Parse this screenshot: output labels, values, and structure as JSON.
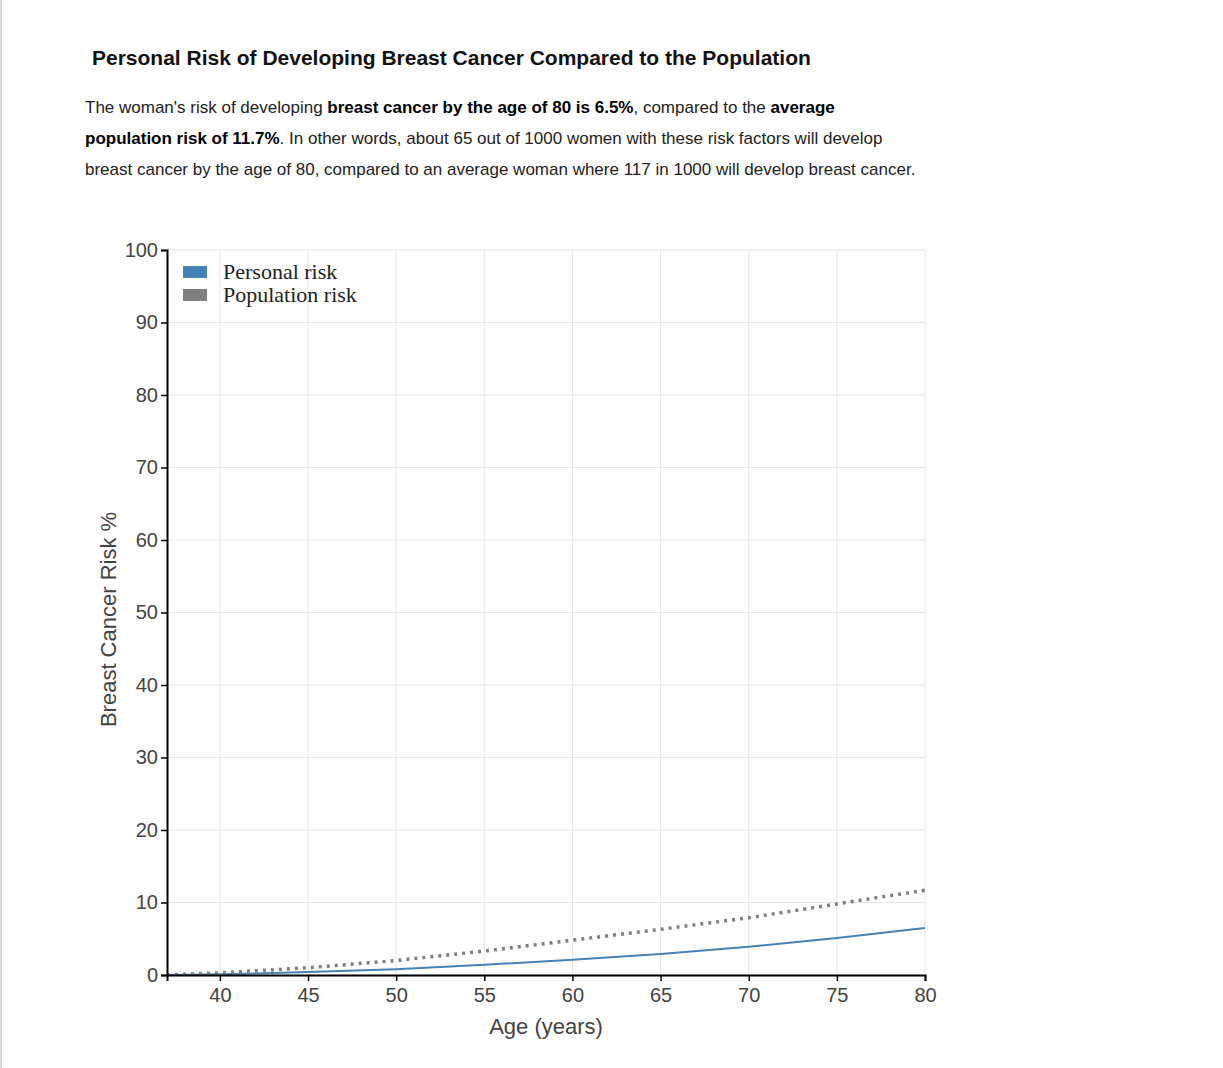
{
  "header": {
    "title": "Personal Risk of Developing Breast Cancer Compared to the Population",
    "lines": [
      [
        {
          "text": "The woman's risk of developing ",
          "bold": false
        },
        {
          "text": "breast cancer by the age of 80 is 6.5%",
          "bold": true
        },
        {
          "text": ", compared to the ",
          "bold": false
        },
        {
          "text": "average",
          "bold": true
        }
      ],
      [
        {
          "text": "population risk of 11.7%",
          "bold": true
        },
        {
          "text": ". In other words, about 65 out of 1000 women with these risk factors will develop",
          "bold": false
        }
      ],
      [
        {
          "text": "breast cancer by the age of 80, compared to an average woman where 117 in 1000 will develop breast cancer.",
          "bold": false
        }
      ]
    ]
  },
  "chart_data": {
    "type": "line",
    "x_label": "Age (years)",
    "y_label": "Breast Cancer Risk %",
    "x": [
      37,
      40,
      45,
      50,
      55,
      60,
      65,
      70,
      75,
      80
    ],
    "series": [
      {
        "name": "Personal risk",
        "color": "#4682b4",
        "line_style": "solid",
        "values": [
          0,
          0.1,
          0.4,
          0.8,
          1.4,
          2.1,
          2.9,
          3.9,
          5.1,
          6.5
        ]
      },
      {
        "name": "Population risk",
        "color": "#808080",
        "line_style": "dotted",
        "values": [
          0,
          0.3,
          1.0,
          2.0,
          3.3,
          4.8,
          6.3,
          7.9,
          9.8,
          11.7
        ]
      }
    ],
    "xlim": [
      37,
      80
    ],
    "xticks": [
      40,
      45,
      50,
      55,
      60,
      65,
      70,
      75,
      80
    ],
    "ylim": [
      0,
      100
    ],
    "yticks": [
      0,
      10,
      20,
      30,
      40,
      50,
      60,
      70,
      80,
      90,
      100
    ],
    "grid": true,
    "legend": "upper left"
  }
}
